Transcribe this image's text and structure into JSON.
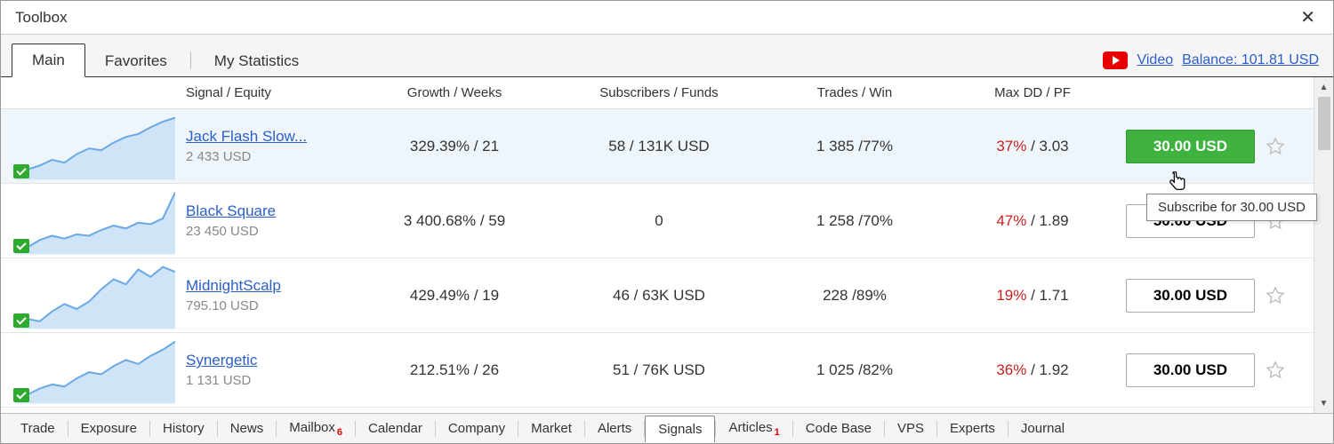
{
  "window": {
    "title": "Toolbox"
  },
  "topTabs": {
    "main": "Main",
    "favorites": "Favorites",
    "mystats": "My Statistics"
  },
  "topRight": {
    "video": "Video",
    "balance": "Balance: 101.81 USD"
  },
  "headers": {
    "signal": "Signal / Equity",
    "growth": "Growth / Weeks",
    "subs": "Subscribers / Funds",
    "trades": "Trades / Win",
    "dd": "Max DD / PF"
  },
  "rows": [
    {
      "name": "Jack Flash Slow...",
      "equity": "2 433 USD",
      "growth": "329.39% / 21",
      "subs": "58 / 131K USD",
      "trades": "1 385 /77%",
      "dd": "37%",
      "pf": " / 3.03",
      "price": "30.00 USD",
      "green": true,
      "spark": [
        10,
        18,
        22,
        28,
        25,
        34,
        40,
        38,
        46,
        52,
        55,
        62,
        68,
        72
      ]
    },
    {
      "name": "Black Square",
      "equity": "23 450 USD",
      "growth": "3 400.68% / 59",
      "subs": "0",
      "trades": "1 258 /70%",
      "dd": "47%",
      "pf": " / 1.89",
      "price": "50.00 USD",
      "green": false,
      "spark": [
        8,
        14,
        24,
        30,
        26,
        32,
        30,
        38,
        44,
        40,
        48,
        46,
        54,
        90
      ]
    },
    {
      "name": "MidnightScalp",
      "equity": "795.10 USD",
      "growth": "429.49% / 19",
      "subs": "46 / 63K USD",
      "trades": "228 /89%",
      "dd": "19%",
      "pf": " / 1.71",
      "price": "30.00 USD",
      "green": false,
      "spark": [
        10,
        16,
        14,
        22,
        28,
        24,
        30,
        40,
        48,
        44,
        56,
        50,
        58,
        54
      ]
    },
    {
      "name": "Synergetic",
      "equity": "1 131 USD",
      "growth": "212.51% / 26",
      "subs": "51 / 76K USD",
      "trades": "1 025 /82%",
      "dd": "36%",
      "pf": " / 1.92",
      "price": "30.00 USD",
      "green": false,
      "spark": [
        8,
        14,
        20,
        24,
        22,
        30,
        36,
        34,
        42,
        48,
        44,
        52,
        58,
        66
      ]
    }
  ],
  "tooltip": "Subscribe for 30.00 USD",
  "bottomTabs": [
    {
      "label": "Trade"
    },
    {
      "label": "Exposure"
    },
    {
      "label": "History"
    },
    {
      "label": "News"
    },
    {
      "label": "Mailbox",
      "badge": "6"
    },
    {
      "label": "Calendar"
    },
    {
      "label": "Company"
    },
    {
      "label": "Market"
    },
    {
      "label": "Alerts"
    },
    {
      "label": "Signals",
      "active": true
    },
    {
      "label": "Articles",
      "badge": "1"
    },
    {
      "label": "Code Base"
    },
    {
      "label": "VPS"
    },
    {
      "label": "Experts"
    },
    {
      "label": "Journal"
    }
  ],
  "colors": {
    "link": "#2b5fc7",
    "ddRed": "#c62020",
    "green": "#3fb13f",
    "sparkStroke": "#6aa8e6",
    "sparkFill": "#cfe4f7"
  }
}
